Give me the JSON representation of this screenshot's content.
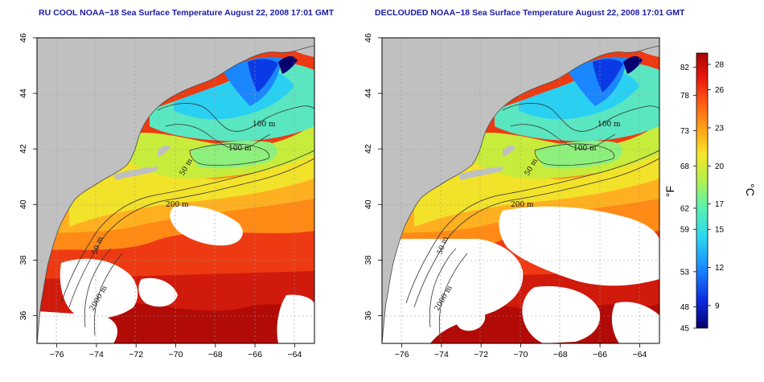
{
  "panels": [
    {
      "title": "RU COOL NOAA−18 Sea Surface Temperature August 22, 2008 17:01 GMT"
    },
    {
      "title": "DECLOUDED NOAA−18 Sea Surface Temperature August 22, 2008 17:01 GMT"
    }
  ],
  "axes": {
    "lon_ticks": [
      "−76",
      "−74",
      "−72",
      "−70",
      "−68",
      "−66",
      "−64"
    ],
    "lat_ticks": [
      "36",
      "38",
      "40",
      "42",
      "44",
      "46"
    ],
    "lon_range": [
      -77,
      -63
    ],
    "lat_range": [
      35,
      46
    ]
  },
  "depth_labels": [
    "100 m",
    "100 m",
    "50 m",
    "200 m",
    "50 m",
    "2000 m"
  ],
  "colorbar": {
    "fahrenheit_label": "°F",
    "celsius_label": "°C",
    "fahrenheit_ticks": [
      "82",
      "78",
      "73",
      "68",
      "62",
      "59",
      "53",
      "48",
      "45"
    ],
    "celsius_ticks": [
      "28",
      "26",
      "23",
      "20",
      "17",
      "15",
      "12",
      "9"
    ],
    "colors": [
      "#08006e",
      "#0a2be0",
      "#1a8cff",
      "#2bd6f0",
      "#5af2b0",
      "#b4f04a",
      "#f5e62a",
      "#ffa618",
      "#ff5a14",
      "#e8180c",
      "#a80606"
    ]
  },
  "colors": {
    "land": "#c0c0c0",
    "coast": "#4a4a4a",
    "grid": "#9a9a9a",
    "title": "#1a1aa8"
  }
}
